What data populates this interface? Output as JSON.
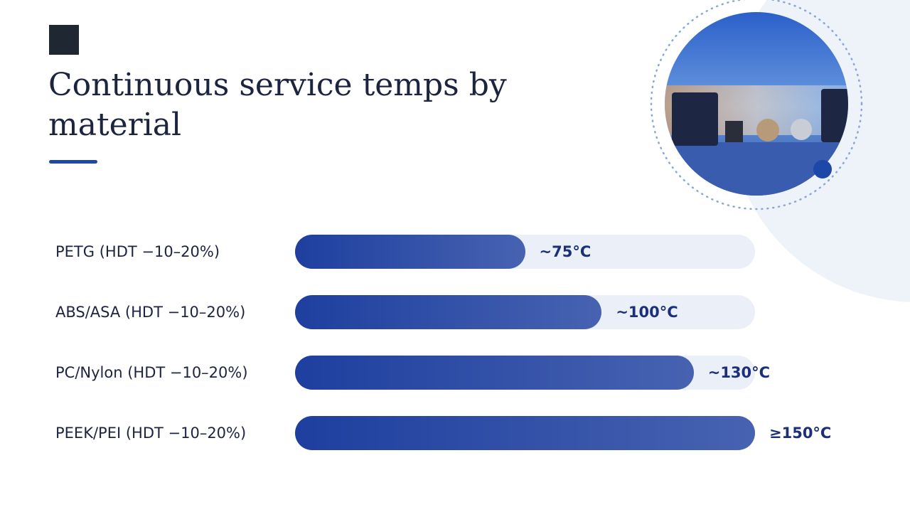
{
  "chart_data": {
    "type": "bar",
    "orientation": "horizontal",
    "title": "Continuous service temps by material",
    "categories": [
      "PETG (HDT −10–20%)",
      "ABS/ASA (HDT −10–20%)",
      "PC/Nylon (HDT −10–20%)",
      "PEEK/PEI (HDT −10–20%)"
    ],
    "values": [
      75,
      100,
      130,
      150
    ],
    "value_labels": [
      "~75°C",
      "~100°C",
      "~130°C",
      "≥150°C"
    ],
    "color": "#1e3f9f"
  }
}
